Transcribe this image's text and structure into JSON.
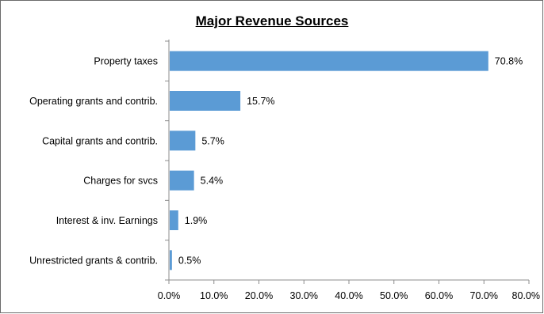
{
  "chart_data": {
    "type": "bar",
    "orientation": "horizontal",
    "title": "Major Revenue Sources",
    "categories": [
      "Property taxes",
      "Operating grants and contrib.",
      "Capital grants and contrib.",
      "Charges for svcs",
      "Interest & inv. Earnings",
      "Unrestricted grants & contrib."
    ],
    "values": [
      70.8,
      15.7,
      5.7,
      5.4,
      1.9,
      0.5
    ],
    "data_labels": [
      "70.8%",
      "15.7%",
      "5.7%",
      "5.4%",
      "1.9%",
      "0.5%"
    ],
    "xlim": [
      0,
      80
    ],
    "x_ticks": [
      0,
      10,
      20,
      30,
      40,
      50,
      60,
      70,
      80
    ],
    "x_tick_labels": [
      "0.0%",
      "10.0%",
      "20.0%",
      "30.0%",
      "40.0%",
      "50.0%",
      "60.0%",
      "70.0%",
      "80.0%"
    ],
    "xlabel": "",
    "ylabel": "",
    "grid": false,
    "legend": "none",
    "bar_color": "#5b9bd5"
  }
}
